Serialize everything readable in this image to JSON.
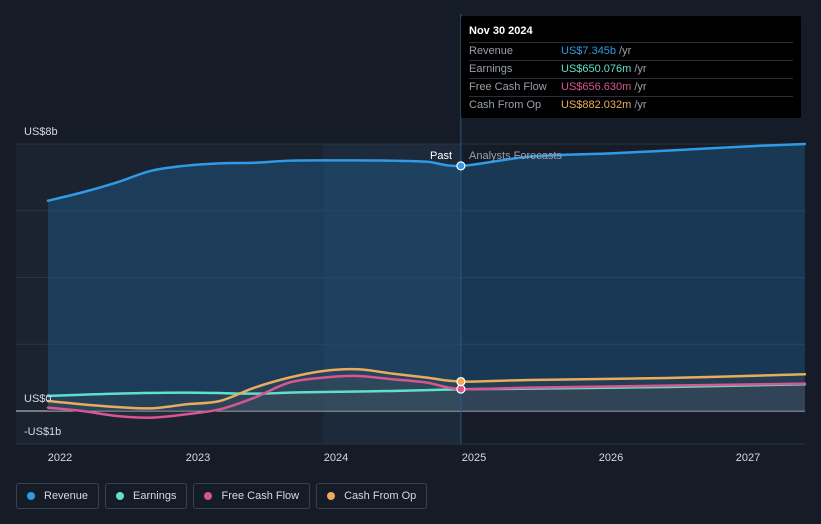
{
  "tooltip": {
    "date": "Nov 30 2024",
    "rows": [
      {
        "label": "Revenue",
        "value": "US$7.345b",
        "unit": "/yr",
        "color": "#2f9be6"
      },
      {
        "label": "Earnings",
        "value": "US$650.076m",
        "unit": "/yr",
        "color": "#5fe0c8"
      },
      {
        "label": "Free Cash Flow",
        "value": "US$656.630m",
        "unit": "/yr",
        "color": "#d8568f"
      },
      {
        "label": "Cash From Op",
        "value": "US$882.032m",
        "unit": "/yr",
        "color": "#e8ad5c"
      }
    ]
  },
  "markers": {
    "past": "Past",
    "forecast": "Analysts Forecasts"
  },
  "legend": [
    {
      "label": "Revenue",
      "color": "#2f9be6"
    },
    {
      "label": "Earnings",
      "color": "#5fe0c8"
    },
    {
      "label": "Free Cash Flow",
      "color": "#d8568f"
    },
    {
      "label": "Cash From Op",
      "color": "#e8ad5c"
    }
  ],
  "chart_data": {
    "type": "line",
    "ylim": [
      -1,
      8
    ],
    "y_tick_labels": [
      "US$8b",
      "US$0",
      "-US$1b"
    ],
    "x_tick_labels": [
      "2022",
      "2023",
      "2024",
      "2025",
      "2026",
      "2027"
    ],
    "past_end": "2024-11-30",
    "series": [
      {
        "name": "Revenue",
        "color": "#2f9be6",
        "points": [
          [
            "2021-11-30",
            6.3
          ],
          [
            "2022-03-01",
            6.55
          ],
          [
            "2022-06-01",
            6.85
          ],
          [
            "2022-09-01",
            7.2
          ],
          [
            "2022-12-01",
            7.35
          ],
          [
            "2023-03-01",
            7.42
          ],
          [
            "2023-06-01",
            7.44
          ],
          [
            "2023-09-01",
            7.5
          ],
          [
            "2023-12-01",
            7.51
          ],
          [
            "2024-03-01",
            7.51
          ],
          [
            "2024-06-01",
            7.5
          ],
          [
            "2024-09-01",
            7.47
          ],
          [
            "2024-11-30",
            7.345
          ],
          [
            "2025-06-01",
            7.62
          ],
          [
            "2026-01-01",
            7.72
          ],
          [
            "2026-07-01",
            7.82
          ],
          [
            "2027-01-01",
            7.93
          ],
          [
            "2027-06-01",
            8.0
          ]
        ]
      },
      {
        "name": "Earnings",
        "color": "#5fe0c8",
        "points": [
          [
            "2021-11-30",
            0.45
          ],
          [
            "2022-06-01",
            0.52
          ],
          [
            "2022-12-01",
            0.55
          ],
          [
            "2023-06-01",
            0.52
          ],
          [
            "2023-09-01",
            0.55
          ],
          [
            "2023-12-01",
            0.57
          ],
          [
            "2024-06-01",
            0.6
          ],
          [
            "2024-11-30",
            0.650076
          ],
          [
            "2025-06-01",
            0.67
          ],
          [
            "2026-06-01",
            0.72
          ],
          [
            "2027-06-01",
            0.8
          ]
        ]
      },
      {
        "name": "Free Cash Flow",
        "color": "#d8568f",
        "points": [
          [
            "2021-11-30",
            0.1
          ],
          [
            "2022-03-01",
            0.0
          ],
          [
            "2022-06-01",
            -0.15
          ],
          [
            "2022-09-01",
            -0.2
          ],
          [
            "2022-12-01",
            -0.1
          ],
          [
            "2023-03-01",
            0.05
          ],
          [
            "2023-06-01",
            0.4
          ],
          [
            "2023-09-01",
            0.85
          ],
          [
            "2023-12-01",
            1.0
          ],
          [
            "2024-03-01",
            1.05
          ],
          [
            "2024-06-01",
            0.95
          ],
          [
            "2024-09-01",
            0.85
          ],
          [
            "2024-11-30",
            0.65663
          ],
          [
            "2025-06-01",
            0.7
          ],
          [
            "2026-06-01",
            0.76
          ],
          [
            "2027-06-01",
            0.82
          ]
        ]
      },
      {
        "name": "Cash From Op",
        "color": "#e8ad5c",
        "points": [
          [
            "2021-11-30",
            0.3
          ],
          [
            "2022-03-01",
            0.2
          ],
          [
            "2022-06-01",
            0.12
          ],
          [
            "2022-09-01",
            0.08
          ],
          [
            "2022-12-01",
            0.2
          ],
          [
            "2023-03-01",
            0.3
          ],
          [
            "2023-06-01",
            0.7
          ],
          [
            "2023-09-01",
            1.0
          ],
          [
            "2023-12-01",
            1.2
          ],
          [
            "2024-03-01",
            1.25
          ],
          [
            "2024-06-01",
            1.12
          ],
          [
            "2024-09-01",
            1.0
          ],
          [
            "2024-11-30",
            0.882032
          ],
          [
            "2025-06-01",
            0.93
          ],
          [
            "2026-06-01",
            0.99
          ],
          [
            "2027-06-01",
            1.1
          ]
        ]
      }
    ]
  }
}
